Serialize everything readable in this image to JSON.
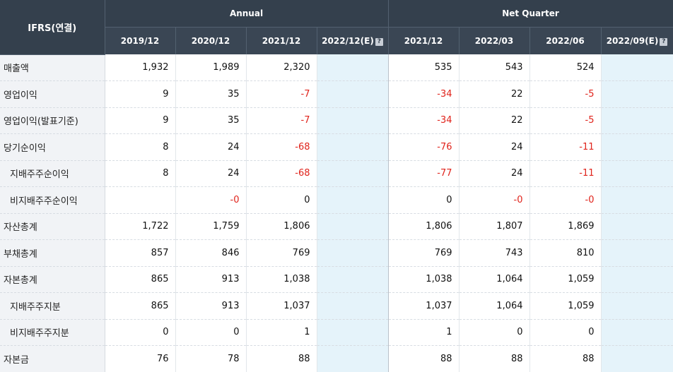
{
  "header": {
    "corner": "IFRS(연결)",
    "annual": "Annual",
    "quarter": "Net Quarter",
    "annual_cols": [
      "2019/12",
      "2020/12",
      "2021/12",
      "2022/12(E)"
    ],
    "quarter_cols": [
      "2021/12",
      "2022/03",
      "2022/06",
      "2022/09(E)"
    ],
    "estimate_icon": "?"
  },
  "rows": [
    {
      "label": "매출액",
      "sub": false,
      "annual": [
        "1,932",
        "1,989",
        "2,320",
        ""
      ],
      "quarter": [
        "535",
        "543",
        "524",
        ""
      ]
    },
    {
      "label": "영업이익",
      "sub": false,
      "annual": [
        "9",
        "35",
        "-7",
        ""
      ],
      "quarter": [
        "-34",
        "22",
        "-5",
        ""
      ]
    },
    {
      "label": "영업이익(발표기준)",
      "sub": false,
      "annual": [
        "9",
        "35",
        "-7",
        ""
      ],
      "quarter": [
        "-34",
        "22",
        "-5",
        ""
      ]
    },
    {
      "label": "당기순이익",
      "sub": false,
      "annual": [
        "8",
        "24",
        "-68",
        ""
      ],
      "quarter": [
        "-76",
        "24",
        "-11",
        ""
      ]
    },
    {
      "label": "지배주주순이익",
      "sub": true,
      "annual": [
        "8",
        "24",
        "-68",
        ""
      ],
      "quarter": [
        "-77",
        "24",
        "-11",
        ""
      ]
    },
    {
      "label": "비지배주주순이익",
      "sub": true,
      "annual": [
        "",
        "-0",
        "0",
        ""
      ],
      "quarter": [
        "0",
        "-0",
        "-0",
        ""
      ]
    },
    {
      "label": "자산총계",
      "sub": false,
      "annual": [
        "1,722",
        "1,759",
        "1,806",
        ""
      ],
      "quarter": [
        "1,806",
        "1,807",
        "1,869",
        ""
      ]
    },
    {
      "label": "부채총계",
      "sub": false,
      "annual": [
        "857",
        "846",
        "769",
        ""
      ],
      "quarter": [
        "769",
        "743",
        "810",
        ""
      ]
    },
    {
      "label": "자본총계",
      "sub": false,
      "annual": [
        "865",
        "913",
        "1,038",
        ""
      ],
      "quarter": [
        "1,038",
        "1,064",
        "1,059",
        ""
      ]
    },
    {
      "label": "지배주주지분",
      "sub": true,
      "annual": [
        "865",
        "913",
        "1,037",
        ""
      ],
      "quarter": [
        "1,037",
        "1,064",
        "1,059",
        ""
      ]
    },
    {
      "label": "비지배주주지분",
      "sub": true,
      "annual": [
        "0",
        "0",
        "1",
        ""
      ],
      "quarter": [
        "1",
        "0",
        "0",
        ""
      ]
    },
    {
      "label": "자본금",
      "sub": false,
      "annual": [
        "76",
        "78",
        "88",
        ""
      ],
      "quarter": [
        "88",
        "88",
        "88",
        ""
      ]
    }
  ],
  "colors": {
    "header_bg": "#34404d",
    "estimate_bg": "#e5f3fa",
    "negative": "#e0231b",
    "label_bg": "#f1f3f6"
  }
}
